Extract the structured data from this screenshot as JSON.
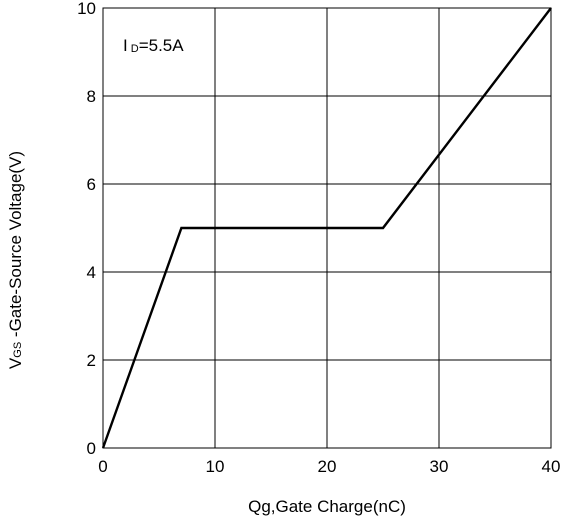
{
  "chart_data": {
    "type": "line",
    "x": [
      0,
      7,
      25,
      40
    ],
    "series": [
      {
        "values": [
          0,
          5,
          5,
          10
        ]
      }
    ],
    "xlabel": "Qg,Gate Charge(nC)",
    "ylabel_main": "V",
    "ylabel_sub": "GS",
    "ylabel_rest": " -Gate-Source Voltage(V)",
    "annotation_main": "I",
    "annotation_sub": "D",
    "annotation_rest": "=5.5A",
    "xlim": [
      0,
      40
    ],
    "ylim": [
      0,
      10
    ],
    "xticks": [
      0,
      10,
      20,
      30,
      40
    ],
    "yticks": [
      0,
      2,
      4,
      6,
      8,
      10
    ],
    "xtick_labels": [
      "0",
      "10",
      "20",
      "30",
      "40"
    ],
    "ytick_labels": [
      "0",
      "2",
      "4",
      "6",
      "8",
      "10"
    ],
    "grid": true,
    "line_color": "#000000"
  }
}
